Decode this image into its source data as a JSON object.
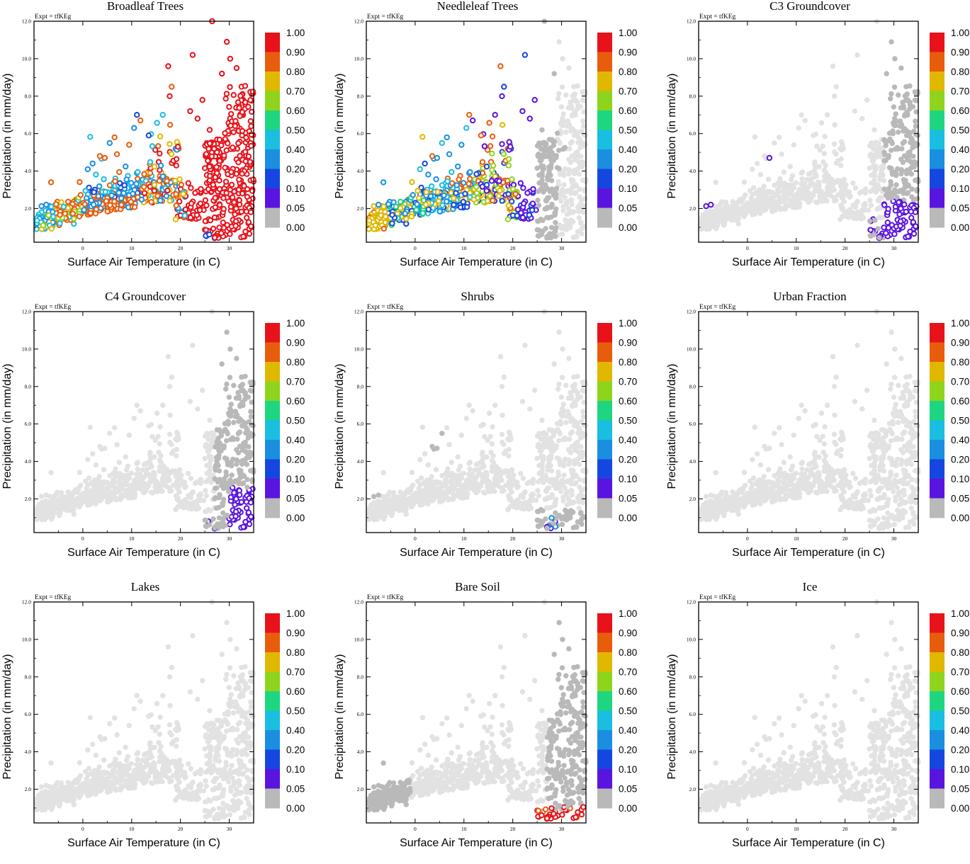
{
  "chart_data": {
    "type": "scatter",
    "expt_label": "Expt = tfKEg",
    "xlabel": "Surface Air Temperature (in C)",
    "ylabel": "Precipitation (in mm/day)",
    "xlim": [
      -10,
      35
    ],
    "ylim": [
      0.2,
      12.0
    ],
    "x_ticks": [
      "0",
      "10",
      "20",
      "30"
    ],
    "x_tick_values": [
      0,
      10,
      20,
      30
    ],
    "y_ticks": [
      "2.0",
      "4.0",
      "6.0",
      "8.0",
      "10.0",
      "12.0"
    ],
    "y_tick_values": [
      2,
      4,
      6,
      8,
      10,
      12
    ],
    "colorbar": {
      "labels": [
        "1.00",
        "0.90",
        "0.80",
        "0.70",
        "0.60",
        "0.50",
        "0.40",
        "0.20",
        "0.10",
        "0.05",
        "0.00"
      ],
      "colors": [
        "#e8121a",
        "#e85d0c",
        "#e0b800",
        "#8fd41c",
        "#1ed67f",
        "#19bee0",
        "#1a8fe0",
        "#1547e0",
        "#5a14e0",
        "#b9b9b9"
      ]
    },
    "zero_color": "#b9b9b9",
    "faint_color": "#e2e2e2",
    "panels": [
      {
        "title": "Broadleaf Trees",
        "mode": "broadleaf"
      },
      {
        "title": "Needleleaf Trees",
        "mode": "needleleaf"
      },
      {
        "title": "C3 Groundcover",
        "mode": "c3"
      },
      {
        "title": "C4 Groundcover",
        "mode": "c4"
      },
      {
        "title": "Shrubs",
        "mode": "shrubs"
      },
      {
        "title": "Urban Fraction",
        "mode": "none"
      },
      {
        "title": "Lakes",
        "mode": "none"
      },
      {
        "title": "Bare Soil",
        "mode": "baresoil"
      },
      {
        "title": "Ice",
        "mode": "none"
      }
    ]
  }
}
